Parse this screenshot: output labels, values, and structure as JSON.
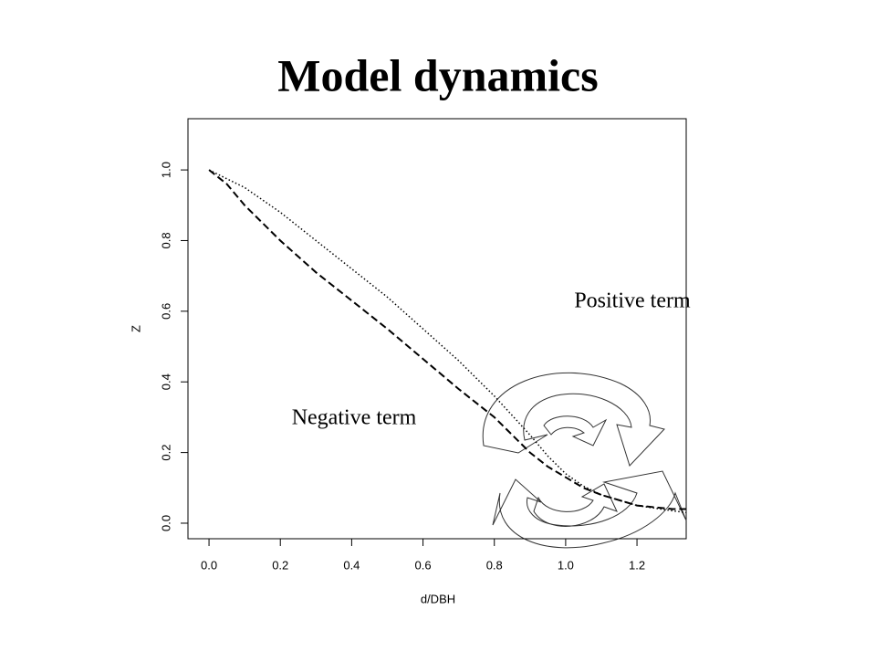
{
  "chart_data": {
    "type": "line",
    "title": "Model dynamics",
    "x_label": "d/DBH",
    "y_label": "Z",
    "x": [
      0,
      0.05,
      0.1,
      0.2,
      0.3,
      0.4,
      0.5,
      0.6,
      0.7,
      0.8,
      0.85,
      0.9,
      0.95,
      1.0,
      1.05,
      1.1,
      1.2,
      1.3,
      1.338
    ],
    "series": [
      {
        "name": "dashed",
        "color": "#000000",
        "linestyle": "dashed",
        "values": [
          1,
          0.96,
          0.9,
          0.8,
          0.71,
          0.63,
          0.55,
          0.465,
          0.38,
          0.3,
          0.25,
          0.2,
          0.16,
          0.13,
          0.1,
          0.08,
          0.05,
          0.04,
          0.04
        ]
      },
      {
        "name": "dotted",
        "color": "#000000",
        "linestyle": "dotted",
        "values": [
          1,
          0.975,
          0.95,
          0.88,
          0.8,
          0.72,
          0.64,
          0.55,
          0.46,
          0.36,
          0.305,
          0.25,
          0.19,
          0.14,
          0.105,
          0.08,
          0.05,
          0.035,
          0.03
        ]
      }
    ],
    "xlim": [
      -0.059,
      1.338
    ],
    "ylim": [
      -0.044,
      1.145
    ],
    "xticks": [
      {
        "value": 0,
        "label": "0.0"
      },
      0.2,
      0.4,
      0.6,
      0.8,
      {
        "value": 1,
        "label": "1.0"
      },
      1.2
    ],
    "yticks": [
      {
        "value": 0,
        "label": "0.0"
      },
      0.2,
      0.4,
      0.6,
      0.8,
      {
        "value": 1,
        "label": "1.0"
      }
    ],
    "annotations": [
      "Positive term",
      "Negative term"
    ]
  }
}
